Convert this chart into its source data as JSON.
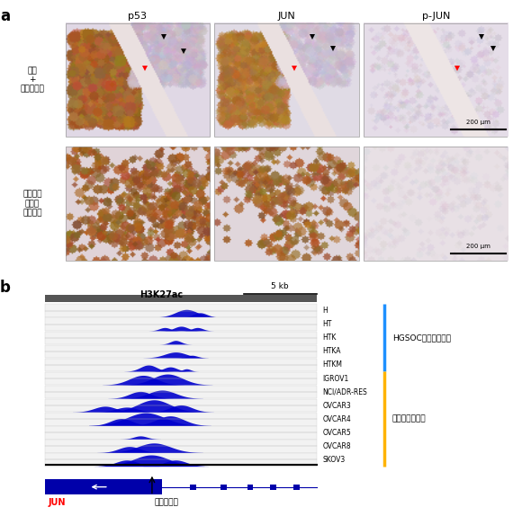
{
  "panel_a_label": "a",
  "panel_b_label": "b",
  "col_titles": [
    "p53",
    "JUN",
    "p-JUN"
  ],
  "row1_label": "卵管\n+\n上皮内がん",
  "row2_label": "高異型度\n漿液性\n卵巣がん",
  "scale_bar_text": "200 μm",
  "h3k27ac_label": "H3K27ac",
  "kb_label": "5 kb",
  "track_labels": [
    "H",
    "HT",
    "HTK",
    "HTKA",
    "HTKM",
    "IGROV1",
    "NCI/ADR-RES",
    "OVCAR3",
    "OVCAR4",
    "OVCAR5",
    "OVCAR8",
    "SKOV3"
  ],
  "hgsoc_label": "HGSOCモデル細胞株",
  "ovarian_label": "卵巣がん細胞株",
  "jun_label": "JUN",
  "tss_label": "転写開始点",
  "hgsoc_color": "#1E90FF",
  "ovarian_color": "#FFB300",
  "jun_color": "#FF0000",
  "track_color": "#0000CC",
  "hgsoc_count": 5,
  "ovarian_count": 7,
  "track_peak_data": [
    [
      [
        0.52,
        0.04,
        0.6
      ],
      [
        0.57,
        0.025,
        0.35
      ]
    ],
    [
      [
        0.44,
        0.02,
        0.25
      ],
      [
        0.5,
        0.025,
        0.35
      ],
      [
        0.56,
        0.02,
        0.25
      ]
    ],
    [
      [
        0.48,
        0.02,
        0.3
      ]
    ],
    [
      [
        0.48,
        0.04,
        0.45
      ],
      [
        0.54,
        0.02,
        0.2
      ]
    ],
    [
      [
        0.38,
        0.03,
        0.5
      ],
      [
        0.46,
        0.025,
        0.35
      ],
      [
        0.52,
        0.015,
        0.2
      ]
    ],
    [
      [
        0.36,
        0.05,
        0.75
      ],
      [
        0.45,
        0.055,
        0.85
      ]
    ],
    [
      [
        0.35,
        0.04,
        0.55
      ],
      [
        0.43,
        0.05,
        0.65
      ]
    ],
    [
      [
        0.22,
        0.04,
        0.45
      ],
      [
        0.3,
        0.04,
        0.38
      ],
      [
        0.4,
        0.06,
        0.95
      ],
      [
        0.5,
        0.04,
        0.55
      ]
    ],
    [
      [
        0.28,
        0.04,
        0.55
      ],
      [
        0.37,
        0.07,
        1.0
      ],
      [
        0.46,
        0.05,
        0.75
      ]
    ],
    [
      [
        0.35,
        0.025,
        0.25
      ]
    ],
    [
      [
        0.31,
        0.04,
        0.48
      ],
      [
        0.4,
        0.06,
        0.75
      ]
    ],
    [
      [
        0.3,
        0.04,
        0.48
      ],
      [
        0.39,
        0.065,
        0.88
      ],
      [
        0.48,
        0.04,
        0.48
      ]
    ]
  ]
}
